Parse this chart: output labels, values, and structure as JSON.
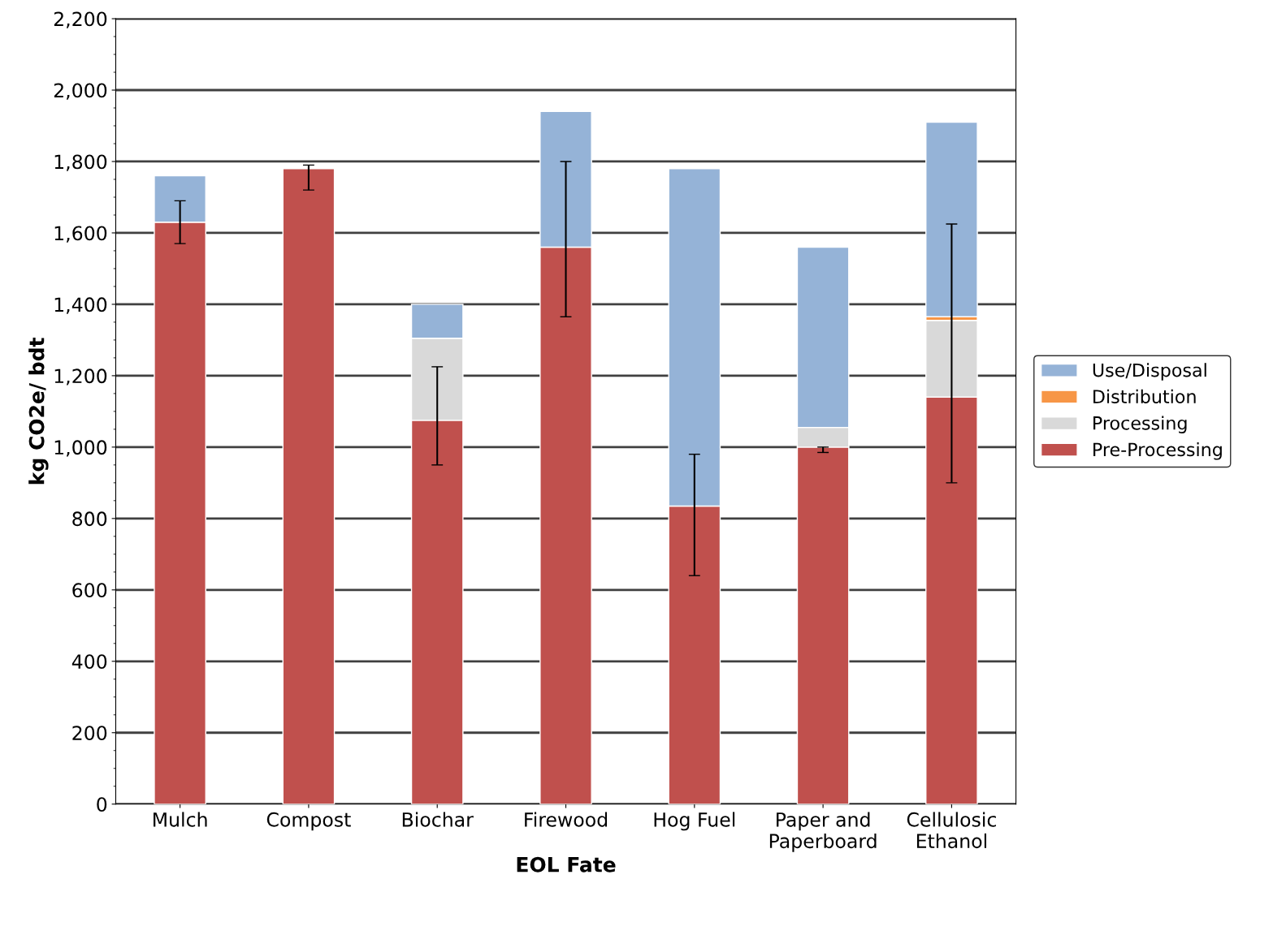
{
  "chart_data": {
    "type": "bar",
    "stacked": true,
    "xlabel": "EOL Fate",
    "ylabel": "kg CO2e/ bdt",
    "categories": [
      "Mulch",
      "Compost",
      "Biochar",
      "Firewood",
      "Hog Fuel",
      "Paper and\nPaperboard",
      "Cellulosic\nEthanol"
    ],
    "series": [
      {
        "name": "Pre-Processing",
        "color": "#c0504d",
        "values": [
          1630,
          1780,
          1075,
          1560,
          835,
          1000,
          1140
        ],
        "errors": [
          [
            1570,
            1690
          ],
          [
            1720,
            1790
          ],
          [
            950,
            1225
          ],
          [
            1365,
            1800
          ],
          [
            640,
            980
          ],
          [
            985,
            1000
          ],
          [
            900,
            1625
          ]
        ]
      },
      {
        "name": "Processing",
        "color": "#d9d9d9",
        "values": [
          null,
          null,
          230,
          null,
          null,
          55,
          215
        ]
      },
      {
        "name": "Distribution",
        "color": "#f79646",
        "values": [
          null,
          null,
          null,
          null,
          null,
          null,
          10
        ]
      },
      {
        "name": "Use/Disposal",
        "color": "#95b3d7",
        "values": [
          130,
          null,
          95,
          380,
          945,
          505,
          545
        ]
      }
    ],
    "ylim": [
      0,
      2200
    ],
    "yticks": [
      0,
      200,
      400,
      600,
      800,
      {
        "value": 1000,
        "label": "1,000"
      },
      {
        "value": 1200,
        "label": "1,200"
      },
      {
        "value": 1400,
        "label": "1,400"
      },
      {
        "value": 1600,
        "label": "1,600"
      },
      {
        "value": 1800,
        "label": "1,800"
      },
      {
        "value": 2000,
        "label": "2,000"
      },
      {
        "value": 2200,
        "label": "2,200"
      }
    ],
    "grid": "y",
    "legend": "right"
  }
}
